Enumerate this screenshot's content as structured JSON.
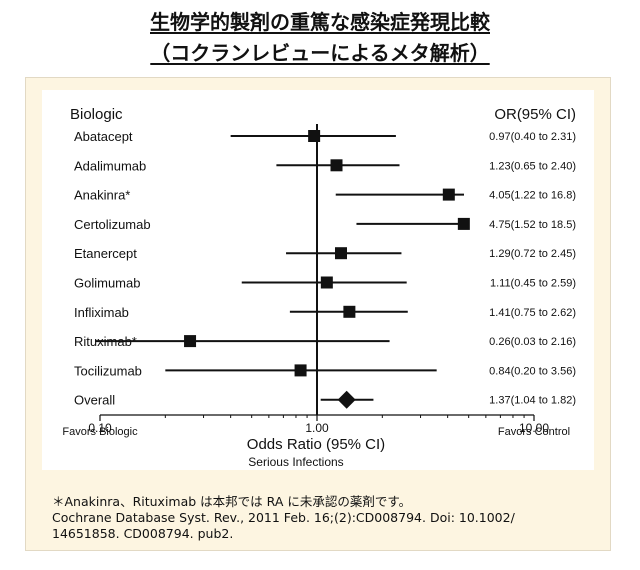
{
  "header": {
    "title_line1": "生物学的製剤の重篤な感染症発現比較",
    "title_line2": "（コクランレビューによるメタ解析）"
  },
  "chart_data": {
    "type": "forest",
    "scale": "log",
    "xlim": [
      0.1,
      10.0
    ],
    "ticks": [
      {
        "value": 0.1,
        "label": "0.10"
      },
      {
        "value": 1.0,
        "label": "1.00"
      },
      {
        "value": 10.0,
        "label": "10.00"
      }
    ],
    "column_headers": {
      "left": "Biologic",
      "right": "OR(95% CI)"
    },
    "xlabel": "Odds Ratio (95% CI)",
    "xsublabel": "Serious Infections",
    "left_favor": "Favors Biologic",
    "right_favor": "Favors Control",
    "rows": [
      {
        "label": "Abatacept",
        "or": 0.97,
        "lo": 0.4,
        "hi": 2.31,
        "text": "0.97(0.40 to 2.31)"
      },
      {
        "label": "Adalimumab",
        "or": 1.23,
        "lo": 0.65,
        "hi": 2.4,
        "text": "1.23(0.65 to 2.40)"
      },
      {
        "label": "Anakinra*",
        "or": 4.05,
        "lo": 1.22,
        "hi": 16.8,
        "text": "4.05(1.22 to 16.8)"
      },
      {
        "label": "Certolizumab",
        "or": 4.75,
        "lo": 1.52,
        "hi": 18.5,
        "text": "4.75(1.52 to 18.5)"
      },
      {
        "label": "Etanercept",
        "or": 1.29,
        "lo": 0.72,
        "hi": 2.45,
        "text": "1.29(0.72 to 2.45)"
      },
      {
        "label": "Golimumab",
        "or": 1.11,
        "lo": 0.45,
        "hi": 2.59,
        "text": "1.11(0.45 to 2.59)"
      },
      {
        "label": "Infliximab",
        "or": 1.41,
        "lo": 0.75,
        "hi": 2.62,
        "text": "1.41(0.75 to 2.62)"
      },
      {
        "label": "Rituximab*",
        "or": 0.26,
        "lo": 0.03,
        "hi": 2.16,
        "text": "0.26(0.03 to 2.16)"
      },
      {
        "label": "Tocilizumab",
        "or": 0.84,
        "lo": 0.2,
        "hi": 3.56,
        "text": "0.84(0.20 to 3.56)"
      }
    ],
    "overall": {
      "label": "Overall",
      "or": 1.37,
      "lo": 1.04,
      "hi": 1.82,
      "text": "1.37(1.04 to 1.82)"
    }
  },
  "footnote": {
    "line1": "＊Anakinra、Rituximab は本邦では RA に未承認の薬剤です。",
    "line2": "Cochrane Database Syst. Rev., 2011 Feb. 16;(2):CD008794. Doi: 10.1002/",
    "line3": "14651858. CD008794. pub2."
  }
}
